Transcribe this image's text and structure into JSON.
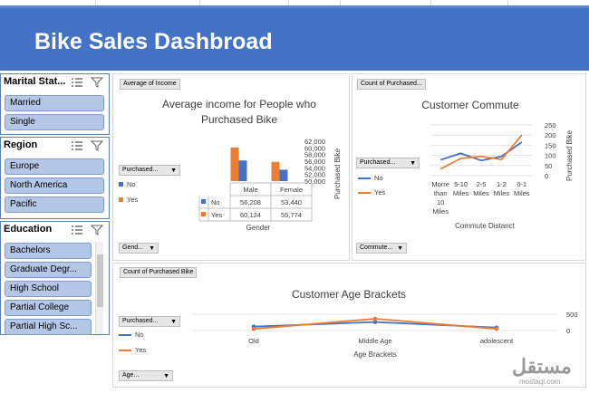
{
  "dashboard": {
    "title": "Bike Sales Dashbroad"
  },
  "slicers": {
    "marital": {
      "title": "Marital Stat...",
      "items": [
        "Married",
        "Single"
      ]
    },
    "region": {
      "title": "Region",
      "items": [
        "Europe",
        "North America",
        "Pacific"
      ]
    },
    "education": {
      "title": "Education",
      "items": [
        "Bachelors",
        "Graduate Degr...",
        "High School",
        "Partial College",
        "Partial High Sc..."
      ]
    }
  },
  "icons": {
    "multiselect": "multi-select-icon",
    "clear_filter": "clear-filter-icon"
  },
  "colors": {
    "blue": "#4472c4",
    "orange": "#ed7d31",
    "slicer_chip": "#b4c7e7"
  },
  "income_chart": {
    "field_button": "Average of Income",
    "legend_dropdown": "Purchased...",
    "axis_dropdown": "Gend...",
    "legend": [
      "No",
      "Yes"
    ],
    "chart_data": {
      "type": "bar",
      "title": "Average income for People who Purchased Bike",
      "categories": [
        "Male",
        "Female"
      ],
      "series": [
        {
          "name": "No",
          "values": [
            56208,
            53440
          ],
          "labels": [
            "56,208",
            "53,440"
          ]
        },
        {
          "name": "Yes",
          "values": [
            60124,
            55774
          ],
          "labels": [
            "60,124",
            "55,774"
          ]
        }
      ],
      "xlabel": "Gender",
      "ylabel": "Purchased Bike",
      "ylim": [
        50000,
        62000
      ],
      "yticks": [
        "62,000",
        "60,000",
        "58,000",
        "56,000",
        "54,000",
        "52,000",
        "50,000"
      ]
    }
  },
  "commute_chart": {
    "field_button": "Count of Purchased...",
    "legend_dropdown": "Purchased...",
    "axis_dropdown": "Commute...",
    "legend": [
      "No",
      "Yes"
    ],
    "chart_data": {
      "type": "line",
      "title": "Customer Commute",
      "categories": [
        "Morre than 10 Miles",
        "5-10 Miles",
        "2-5 Miles",
        "1-2 Miles",
        "0-1 Miles"
      ],
      "category_lines": [
        [
          "Morre",
          "than",
          "10",
          "Miles"
        ],
        [
          "5-10",
          "Miles"
        ],
        [
          "2-5",
          "Miles"
        ],
        [
          "1-2",
          "Miles"
        ],
        [
          "0-1",
          "Miles"
        ]
      ],
      "series": [
        {
          "name": "No",
          "values": [
            78,
            110,
            75,
            95,
            165
          ]
        },
        {
          "name": "Yes",
          "values": [
            33,
            85,
            95,
            80,
            200
          ]
        }
      ],
      "xlabel": "Commute Distanct",
      "ylabel": "Purchased Bike",
      "ylim": [
        0,
        250
      ],
      "yticks": [
        "250",
        "200",
        "150",
        "100",
        "50",
        "0"
      ]
    }
  },
  "age_chart": {
    "field_button": "Count of Purchased Bike",
    "legend_dropdown": "Purchased...",
    "axis_dropdown": "Age...",
    "legend": [
      "No",
      "Yes"
    ],
    "chart_data": {
      "type": "line",
      "title": "Customer Age Brackets",
      "categories": [
        "Old",
        "Middle Age",
        "adolescent"
      ],
      "series": [
        {
          "name": "No",
          "values": [
            120,
            260,
            90
          ]
        },
        {
          "name": "Yes",
          "values": [
            50,
            360,
            50
          ]
        }
      ],
      "xlabel": "Age Brackets",
      "ylim": [
        0,
        500
      ],
      "yticks": [
        "500",
        "0"
      ]
    }
  },
  "watermark": {
    "arabic": "مستقل",
    "latin": "mostaql.com"
  }
}
